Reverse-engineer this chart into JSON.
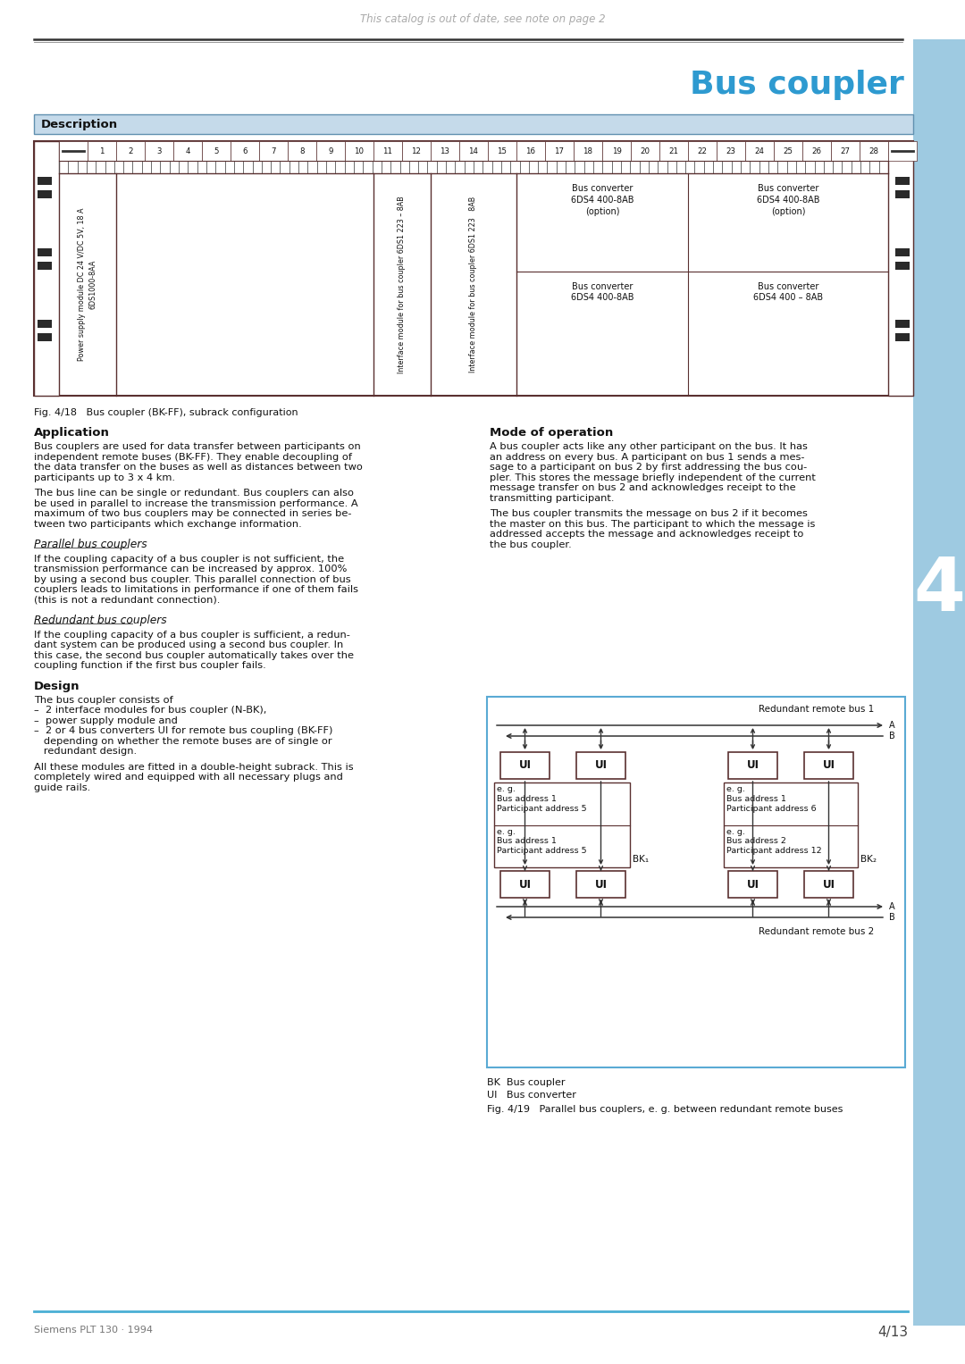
{
  "page_title": "Bus coupler",
  "top_note": "This catalog is out of date, see note on page 2",
  "section_label": "Description",
  "figure_caption": "Fig. 4/18   Bus coupler (BK-FF), subrack configuration",
  "figure419_caption": "Fig. 4/19   Parallel bus couplers, e. g. between redundant remote buses",
  "bk_legend": "BK  Bus coupler",
  "ui_legend": "UI   Bus converter",
  "footer_left": "Siemens PLT 130 · 1994",
  "footer_right": "4/13",
  "page_number_big": "4",
  "blue_color": "#4aafd4",
  "title_blue": "#2e9ad0",
  "section_bg": "#c5daea",
  "section_border": "#6090b0",
  "text_dark": "#1a1a1a",
  "text_body": "#222222",
  "gray_text": "#aaaaaa",
  "right_bar_color": "#9ecae1",
  "diagram_border": "#5a3030",
  "slot_numbers": [
    "1",
    "2",
    "3",
    "4",
    "5",
    "6",
    "7",
    "8",
    "9",
    "10",
    "11",
    "12",
    "13",
    "14",
    "15",
    "16",
    "17",
    "18",
    "19",
    "20",
    "21",
    "22",
    "23",
    "24",
    "25",
    "26",
    "27",
    "28"
  ],
  "app_title": "Application",
  "app_body1": "Bus couplers are used for data transfer between participants on\nindependent remote buses (BK-FF). They enable decoupling of\nthe data transfer on the buses as well as distances between two\nparticipants up to 3 x 4 km.",
  "app_body2": "The bus line can be single or redundant. Bus couplers can also\nbe used in parallel to increase the transmission performance. A\nmaximum of two bus couplers may be connected in series be-\ntween two participants which exchange information.",
  "par_bus_title": "Parallel bus couplers",
  "par_bus_text": "If the coupling capacity of a bus coupler is not sufficient, the\ntransmission performance can be increased by approx. 100%\nby using a second bus coupler. This parallel connection of bus\ncouplers leads to limitations in performance if one of them fails\n(this is not a redundant connection).",
  "red_bus_title": "Redundant bus couplers",
  "red_bus_text": "If the coupling capacity of a bus coupler is sufficient, a redun-\ndant system can be produced using a second bus coupler. In\nthis case, the second bus coupler automatically takes over the\ncoupling function if the first bus coupler fails.",
  "design_title": "Design",
  "design_body1": "The bus coupler consists of",
  "design_list": "–  2 interface modules for bus coupler (N-BK),\n–  power supply module and\n–  2 or 4 bus converters UI for remote bus coupling (BK-FF)\n   depending on whether the remote buses are of single or\n   redundant design.",
  "design_body2": "All these modules are fitted in a double-height subrack. This is\ncompletely wired and equipped with all necessary plugs and\nguide rails.",
  "mode_title": "Mode of operation",
  "mode_body1": "A bus coupler acts like any other participant on the bus. It has\nan address on every bus. A participant on bus 1 sends a mes-\nsage to a participant on bus 2 by first addressing the bus cou-\npler. This stores the message briefly independent of the current\nmessage transfer on bus 2 and acknowledges receipt to the\ntransmitting participant.",
  "mode_body2": "The bus coupler transmits the message on bus 2 if it becomes\nthe master on this bus. The participant to which the message is\naddressed accepts the message and acknowledges receipt to\nthe bus coupler."
}
